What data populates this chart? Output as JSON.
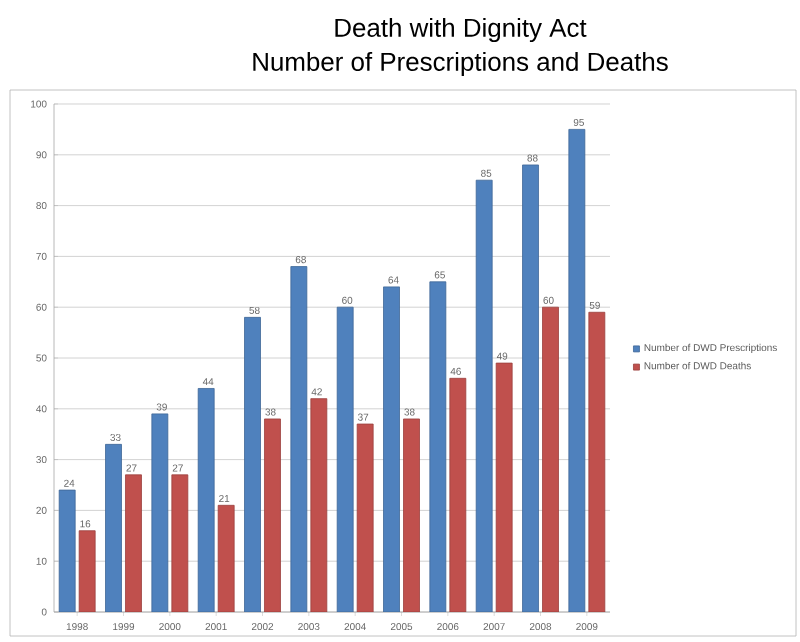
{
  "chart_data": {
    "type": "bar",
    "title": "Death with Dignity Act",
    "subtitle": "Number of Prescriptions and Deaths",
    "categories": [
      "1998",
      "1999",
      "2000",
      "2001",
      "2002",
      "2003",
      "2004",
      "2005",
      "2006",
      "2007",
      "2008",
      "2009"
    ],
    "series": [
      {
        "name": "Number of DWD Prescriptions",
        "color": "#4f81bd",
        "values": [
          24,
          33,
          39,
          44,
          58,
          68,
          60,
          64,
          65,
          85,
          88,
          95
        ]
      },
      {
        "name": "Number of DWD Deaths",
        "color": "#c0504d",
        "values": [
          16,
          27,
          27,
          21,
          38,
          42,
          37,
          38,
          46,
          49,
          60,
          59
        ]
      }
    ],
    "ylim": [
      0,
      100
    ],
    "yticks": [
      0,
      10,
      20,
      30,
      40,
      50,
      60,
      70,
      80,
      90,
      100
    ],
    "grid": "y",
    "legend": "right",
    "data_labels": true
  }
}
